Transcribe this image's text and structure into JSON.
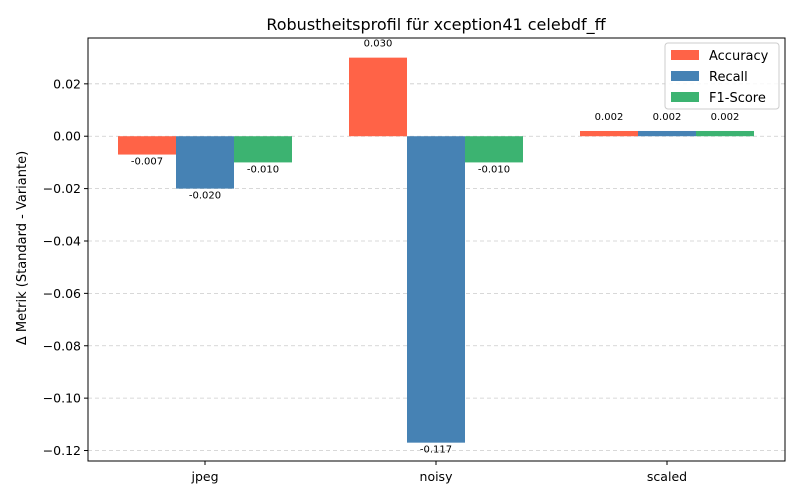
{
  "chart_data": {
    "type": "bar",
    "title": "Robustheitsprofil für xception41 celebdf_ff",
    "xlabel": "",
    "ylabel": "Δ Metrik (Standard - Variante)",
    "categories": [
      "jpeg",
      "noisy",
      "scaled"
    ],
    "ylim": [
      -0.124,
      0.0375
    ],
    "yticks": [
      0.02,
      0.0,
      -0.02,
      -0.04,
      -0.06,
      -0.08,
      -0.1,
      -0.12
    ],
    "ytick_labels": [
      "0.02",
      "0.00",
      "−0.02",
      "−0.04",
      "−0.06",
      "−0.08",
      "−0.10",
      "−0.12"
    ],
    "grid": "y-dashed",
    "legend_position": "top-right",
    "series": [
      {
        "name": "Accuracy",
        "color": "#ff6347",
        "values": [
          -0.007,
          0.03,
          0.002
        ],
        "labels": [
          "-0.007",
          "0.030",
          "0.002"
        ]
      },
      {
        "name": "Recall",
        "color": "#4682b4",
        "values": [
          -0.02,
          -0.117,
          0.002
        ],
        "labels": [
          "-0.020",
          "-0.117",
          "0.002"
        ]
      },
      {
        "name": "F1-Score",
        "color": "#3cb371",
        "values": [
          -0.01,
          -0.01,
          0.002
        ],
        "labels": [
          "-0.010",
          "-0.010",
          "0.002"
        ]
      }
    ]
  }
}
